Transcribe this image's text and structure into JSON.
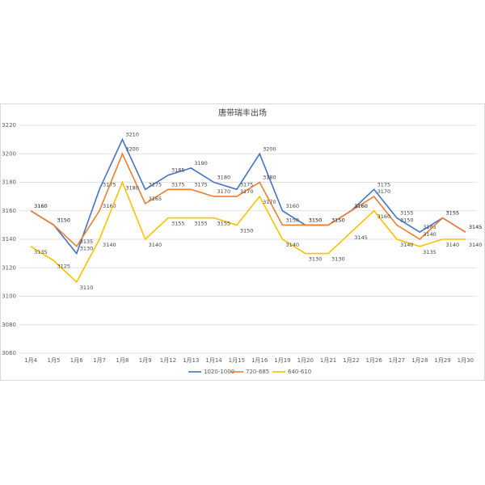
{
  "chart_data": {
    "type": "line",
    "title": "唐带瑞丰出场",
    "categories": [
      "1月4",
      "1月5",
      "1月6",
      "1月7",
      "1月8",
      "1月9",
      "1月12",
      "1月13",
      "1月14",
      "1月15",
      "1月16",
      "1月19",
      "1月20",
      "1月21",
      "1月22",
      "1月26",
      "1月27",
      "1月28",
      "1月29",
      "1月30"
    ],
    "series": [
      {
        "name": "1020-1000",
        "color": "#4472c4",
        "values": [
          3160,
          3150,
          3130,
          3175,
          3210,
          3175,
          3185,
          3190,
          3180,
          3175,
          3200,
          3160,
          3150,
          3150,
          3160,
          3175,
          3155,
          3145,
          3155,
          3145
        ]
      },
      {
        "name": "720-685",
        "color": "#ed7d31",
        "values": [
          3160,
          3150,
          3135,
          3160,
          3200,
          3165,
          3175,
          3175,
          3170,
          3170,
          3180,
          3150,
          3150,
          3150,
          3160,
          3170,
          3150,
          3140,
          3155,
          3145
        ]
      },
      {
        "name": "640-610",
        "color": "#ffc000",
        "values": [
          3135,
          3125,
          3110,
          3140,
          3180,
          3140,
          3155,
          3155,
          3155,
          3150,
          3170,
          3140,
          3130,
          3130,
          3145,
          3160,
          3140,
          3135,
          3140,
          3140
        ]
      }
    ],
    "ylim": [
      3060,
      3220
    ],
    "yticks": [
      3060,
      3080,
      3100,
      3120,
      3140,
      3160,
      3180,
      3200,
      3220
    ],
    "grid": true,
    "legend": "bottom"
  }
}
